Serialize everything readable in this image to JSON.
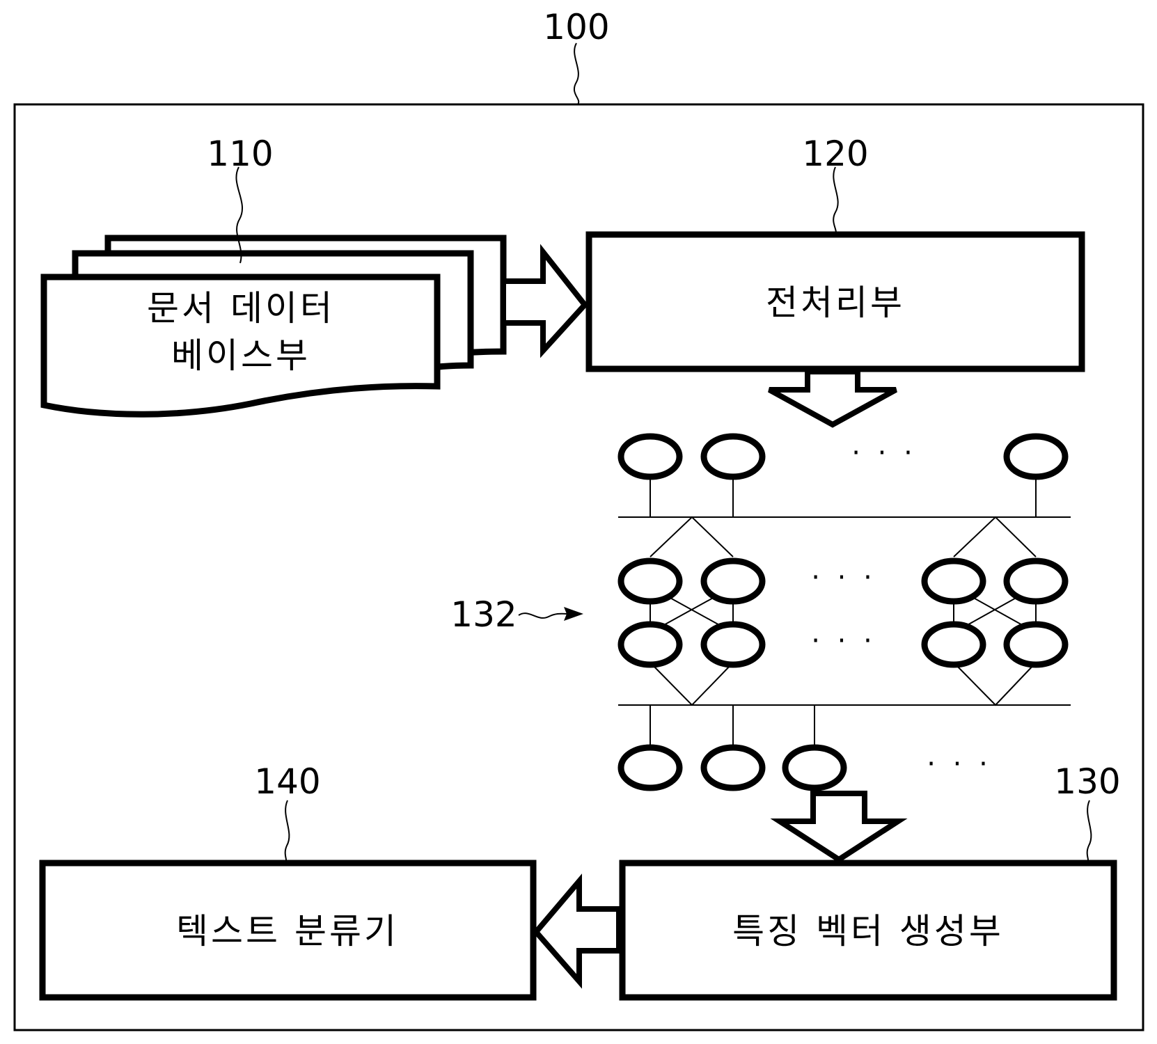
{
  "system": {
    "ref": "100"
  },
  "document_db": {
    "ref": "110",
    "line1": "문서 데이터",
    "line2": "베이스부"
  },
  "preprocessor": {
    "ref": "120",
    "label": "전처리부"
  },
  "network": {
    "ref": "132",
    "ellipsis": "· · ·"
  },
  "feature_vector": {
    "ref": "130",
    "label": "특징 벡터 생성부"
  },
  "text_classifier": {
    "ref": "140",
    "label": "텍스트 분류기"
  }
}
